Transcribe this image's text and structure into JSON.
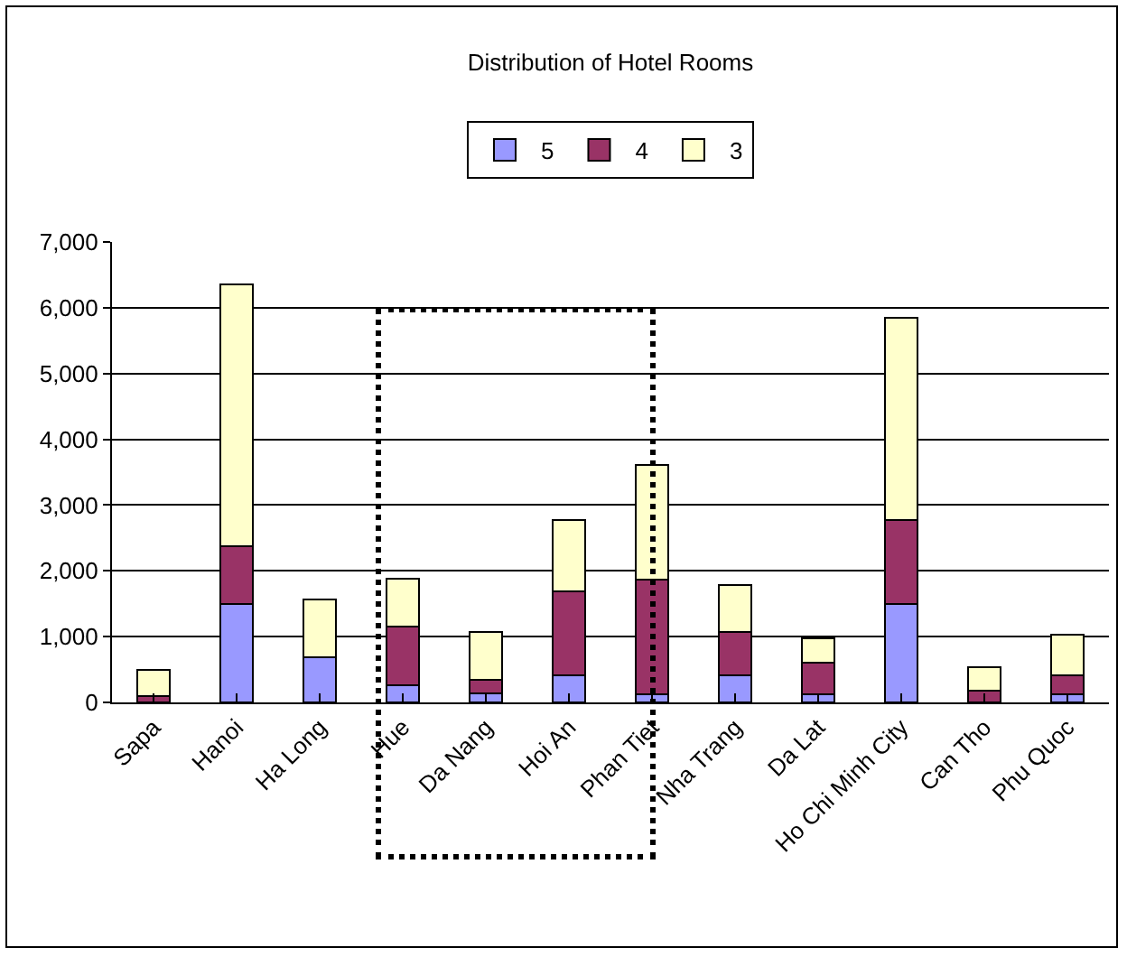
{
  "chart_data": {
    "type": "bar",
    "title": "Distribution of Hotel Rooms",
    "stacked": true,
    "legend": "top",
    "grid": "y",
    "categories": [
      "Sapa",
      "Hanoi",
      "Ha Long",
      "Hue",
      "Da Nang",
      "Hoi An",
      "Phan Tiet",
      "Nha Trang",
      "Da Lat",
      "Ho Chi Minh City",
      "Can Tho",
      "Phu Quoc"
    ],
    "series": [
      {
        "name": "5",
        "color": "#9999ff",
        "values": [
          0,
          1500,
          690,
          260,
          140,
          410,
          130,
          410,
          130,
          1490,
          0,
          130
        ]
      },
      {
        "name": "4",
        "color": "#993366",
        "values": [
          100,
          870,
          0,
          890,
          200,
          1280,
          1740,
          660,
          480,
          1280,
          180,
          280
        ]
      },
      {
        "name": "3",
        "color": "#ffffcc",
        "values": [
          400,
          3980,
          880,
          730,
          730,
          1080,
          1740,
          710,
          360,
          3080,
          350,
          620
        ]
      }
    ],
    "ylim": [
      0,
      7000
    ],
    "yticks": [
      {
        "value": 0,
        "label": "0"
      },
      {
        "value": 1000,
        "label": "1,000"
      },
      {
        "value": 2000,
        "label": "2,000"
      },
      {
        "value": 3000,
        "label": "3,000"
      },
      {
        "value": 4000,
        "label": "4,000"
      },
      {
        "value": 5000,
        "label": "5,000"
      },
      {
        "value": 6000,
        "label": "6,000"
      },
      {
        "value": 7000,
        "label": "7,000"
      }
    ]
  }
}
